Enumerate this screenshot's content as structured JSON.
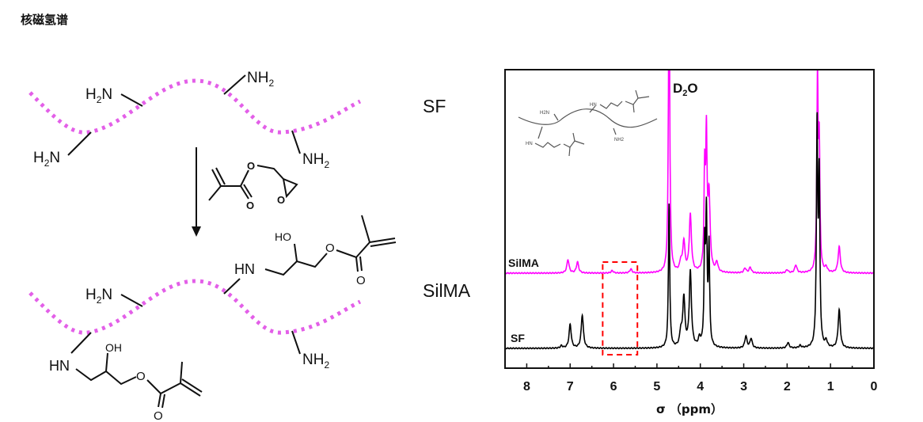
{
  "title": "核磁氢谱",
  "scheme": {
    "sf_label": "SF",
    "silma_label": "SilMA",
    "amine_group": "NH2",
    "amine_group_left": "H2N",
    "secondary_amine": "HN",
    "hydroxyl": "OH",
    "hydroxyl_left": "HO",
    "oxygen": "O",
    "chain_color": "#e35fe8"
  },
  "chart_data": {
    "type": "line",
    "title": "",
    "xlabel": "σ （ppm）",
    "ylabel": "",
    "xlim": [
      8.5,
      0
    ],
    "x_reversed": true,
    "xticks": [
      "8",
      "7",
      "6",
      "5",
      "4",
      "3",
      "2",
      "1",
      "0"
    ],
    "grid": false,
    "annotation_peak": "D2O",
    "annotation_peak_ppm": 4.72,
    "highlight_box_ppm": [
      6.25,
      5.45
    ],
    "highlight_color": "#ff0000",
    "series": [
      {
        "name": "SilMA",
        "color": "#ff00ff",
        "peaks": [
          {
            "ppm": 7.05,
            "intensity": 17
          },
          {
            "ppm": 6.83,
            "intensity": 14
          },
          {
            "ppm": 6.03,
            "intensity": 3
          },
          {
            "ppm": 5.6,
            "intensity": 5
          },
          {
            "ppm": 4.72,
            "intensity": 400
          },
          {
            "ppm": 4.45,
            "intensity": 12
          },
          {
            "ppm": 4.38,
            "intensity": 38
          },
          {
            "ppm": 4.23,
            "intensity": 72
          },
          {
            "ppm": 3.9,
            "intensity": 120
          },
          {
            "ppm": 3.86,
            "intensity": 160
          },
          {
            "ppm": 3.8,
            "intensity": 95
          },
          {
            "ppm": 3.62,
            "intensity": 12
          },
          {
            "ppm": 2.97,
            "intensity": 6
          },
          {
            "ppm": 2.85,
            "intensity": 7
          },
          {
            "ppm": 2.0,
            "intensity": 4
          },
          {
            "ppm": 1.8,
            "intensity": 10
          },
          {
            "ppm": 1.3,
            "intensity": 238
          },
          {
            "ppm": 1.26,
            "intensity": 150
          },
          {
            "ppm": 1.1,
            "intensity": 6
          },
          {
            "ppm": 0.8,
            "intensity": 33
          }
        ]
      },
      {
        "name": "SF",
        "color": "#000000",
        "peaks": [
          {
            "ppm": 7.2,
            "intensity": 3
          },
          {
            "ppm": 7.0,
            "intensity": 30
          },
          {
            "ppm": 6.72,
            "intensity": 42
          },
          {
            "ppm": 4.72,
            "intensity": 182
          },
          {
            "ppm": 4.45,
            "intensity": 18
          },
          {
            "ppm": 4.38,
            "intensity": 62
          },
          {
            "ppm": 4.23,
            "intensity": 95
          },
          {
            "ppm": 4.02,
            "intensity": 10
          },
          {
            "ppm": 3.9,
            "intensity": 120
          },
          {
            "ppm": 3.86,
            "intensity": 160
          },
          {
            "ppm": 3.8,
            "intensity": 125
          },
          {
            "ppm": 2.95,
            "intensity": 15
          },
          {
            "ppm": 2.83,
            "intensity": 12
          },
          {
            "ppm": 1.98,
            "intensity": 7
          },
          {
            "ppm": 1.7,
            "intensity": 3
          },
          {
            "ppm": 1.31,
            "intensity": 275
          },
          {
            "ppm": 1.26,
            "intensity": 208
          },
          {
            "ppm": 1.1,
            "intensity": 8
          },
          {
            "ppm": 0.8,
            "intensity": 48
          }
        ]
      }
    ]
  }
}
